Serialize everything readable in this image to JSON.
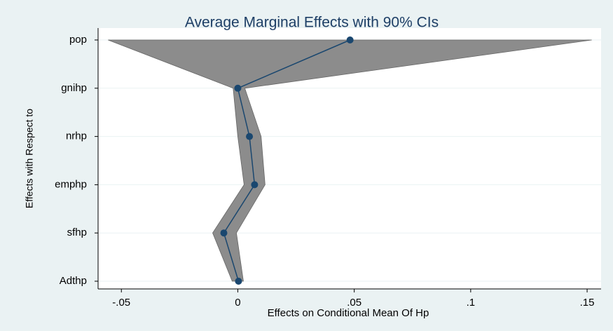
{
  "chart_data": {
    "type": "coefplot",
    "title": "Average Marginal Effects with 90% CIs",
    "x_label": "Effects on Conditional Mean Of Hp",
    "y_label": "Effects with Respect to",
    "categories": [
      "pop",
      "gnihp",
      "nrhp",
      "emphp",
      "sfhp",
      "Adthp"
    ],
    "series": [
      {
        "color": "#1a476f",
        "band_color": "#8c8c8c",
        "values": [
          0.0482,
          0.0,
          0.005,
          0.0072,
          -0.006,
          0.0003
        ],
        "ci_low": [
          -0.0557,
          -0.002,
          0.0,
          0.0027,
          -0.0108,
          -0.0024
        ],
        "ci_high": [
          0.152,
          0.003,
          0.01,
          0.0117,
          -0.0006,
          0.0024
        ]
      }
    ],
    "xlim": [
      -0.06,
      0.156
    ],
    "xticks": [
      {
        "value": -0.05,
        "label": "-.05"
      },
      0,
      {
        "value": 0.05,
        "label": ".05"
      },
      {
        "value": 0.1,
        "label": ".1"
      },
      {
        "value": 0.15,
        "label": ".15"
      }
    ],
    "grid": true
  }
}
